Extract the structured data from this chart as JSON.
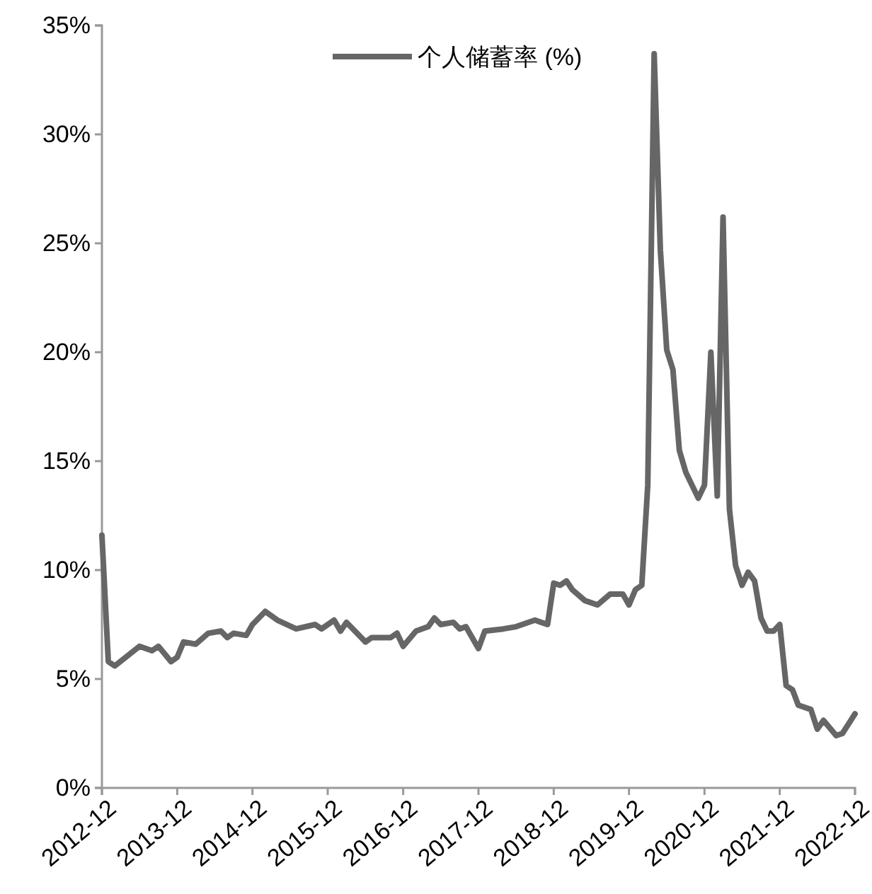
{
  "chart_data": {
    "type": "line",
    "legend": "top",
    "grid": false,
    "xlim": [
      "2012-12",
      "2022-12"
    ],
    "xticks": [
      "2012-12",
      "2013-12",
      "2014-12",
      "2015-12",
      "2016-12",
      "2017-12",
      "2018-12",
      "2019-12",
      "2020-12",
      "2021-12",
      "2022-12"
    ],
    "ylim": [
      0,
      35
    ],
    "yticks": [
      {
        "value": 0,
        "label": "0%"
      },
      {
        "value": 5,
        "label": "5%"
      },
      {
        "value": 10,
        "label": "10%"
      },
      {
        "value": 15,
        "label": "15%"
      },
      {
        "value": 20,
        "label": "20%"
      },
      {
        "value": 25,
        "label": "25%"
      },
      {
        "value": 30,
        "label": "30%"
      },
      {
        "value": 35,
        "label": "35%"
      }
    ],
    "series": [
      {
        "name": "个人储蓄率 (%)",
        "color": "#666666",
        "x": [
          "2012-12",
          "2013-01",
          "2013-02",
          "2013-06",
          "2013-08",
          "2013-09",
          "2013-11",
          "2013-12",
          "2014-01",
          "2014-03",
          "2014-05",
          "2014-07",
          "2014-08",
          "2014-09",
          "2014-11",
          "2014-12",
          "2015-02",
          "2015-04",
          "2015-07",
          "2015-10",
          "2015-11",
          "2016-01",
          "2016-02",
          "2016-03",
          "2016-06",
          "2016-07",
          "2016-10",
          "2016-11",
          "2016-12",
          "2017-02",
          "2017-04",
          "2017-05",
          "2017-06",
          "2017-08",
          "2017-09",
          "2017-10",
          "2017-12",
          "2018-01",
          "2018-04",
          "2018-06",
          "2018-09",
          "2018-11",
          "2018-12",
          "2019-01",
          "2019-02",
          "2019-03",
          "2019-05",
          "2019-07",
          "2019-09",
          "2019-11",
          "2019-12",
          "2020-01",
          "2020-02",
          "2020-03",
          "2020-04",
          "2020-05",
          "2020-06",
          "2020-07",
          "2020-08",
          "2020-09",
          "2020-11",
          "2020-12",
          "2021-01",
          "2021-02",
          "2021-03",
          "2021-04",
          "2021-05",
          "2021-06",
          "2021-07",
          "2021-08",
          "2021-09",
          "2021-10",
          "2021-11",
          "2021-12",
          "2022-01",
          "2022-02",
          "2022-03",
          "2022-05",
          "2022-06",
          "2022-07",
          "2022-09",
          "2022-10",
          "2022-12"
        ],
        "values": [
          11.6,
          5.8,
          5.6,
          6.5,
          6.3,
          6.5,
          5.8,
          6.0,
          6.7,
          6.6,
          7.1,
          7.2,
          6.9,
          7.1,
          7.0,
          7.5,
          8.1,
          7.7,
          7.3,
          7.5,
          7.3,
          7.7,
          7.2,
          7.6,
          6.7,
          6.9,
          6.9,
          7.1,
          6.5,
          7.2,
          7.4,
          7.8,
          7.5,
          7.6,
          7.3,
          7.4,
          6.4,
          7.2,
          7.3,
          7.4,
          7.7,
          7.5,
          9.4,
          9.3,
          9.5,
          9.1,
          8.6,
          8.4,
          8.9,
          8.9,
          8.4,
          9.1,
          9.3,
          13.9,
          33.7,
          24.7,
          20.1,
          19.2,
          15.5,
          14.5,
          13.3,
          13.9,
          20.0,
          13.4,
          26.2,
          12.8,
          10.2,
          9.3,
          9.9,
          9.5,
          7.8,
          7.2,
          7.2,
          7.5,
          4.7,
          4.5,
          3.8,
          3.6,
          2.7,
          3.1,
          2.4,
          2.5,
          3.4
        ]
      }
    ]
  }
}
